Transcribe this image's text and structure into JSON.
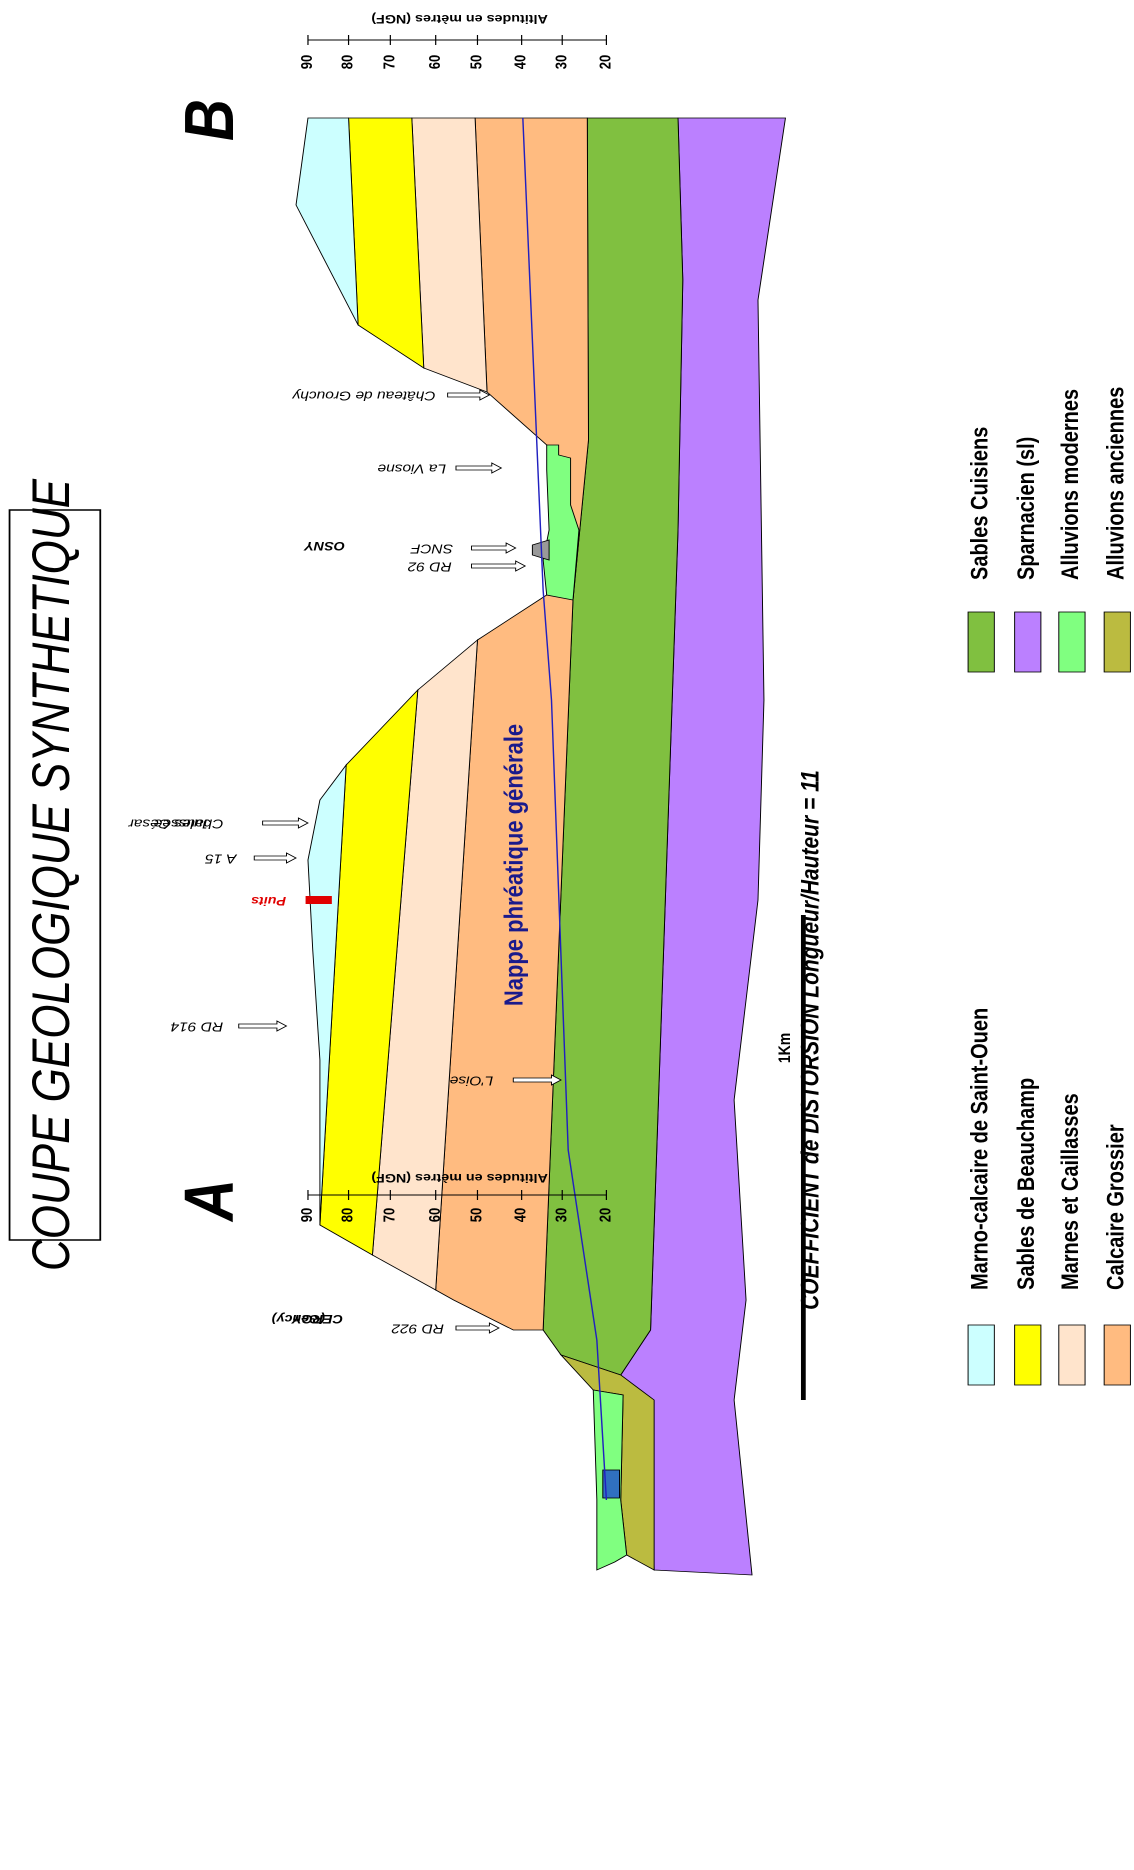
{
  "title": "COUPE GEOLOGIQUE SYNTHETIQUE",
  "section_ends": {
    "start": "A",
    "end": "B"
  },
  "altitude_axis": {
    "title": "Altitudes en mètres (NGF)",
    "ticks": [
      "90",
      "80",
      "70",
      "60",
      "50",
      "40",
      "30",
      "20"
    ]
  },
  "places": [
    {
      "lines": [
        "L'Oise"
      ]
    },
    {
      "lines": [
        "RD 922"
      ]
    },
    {
      "lines": [
        "RD 914"
      ]
    },
    {
      "lines": [
        "A 15"
      ]
    },
    {
      "lines": [
        "Chaussée",
        "Jules César"
      ]
    },
    {
      "lines": [
        "RD 92"
      ]
    },
    {
      "lines": [
        "SNCF"
      ]
    },
    {
      "lines": [
        "La Viosne"
      ]
    },
    {
      "lines": [
        "Château de Grouchy"
      ]
    }
  ],
  "communes": [
    {
      "lines": [
        "CERGY",
        "(Gency)"
      ]
    },
    {
      "lines": [
        "OSNY"
      ]
    }
  ],
  "well": "Puits",
  "aquifer": "Nappe phréatique générale",
  "scale": "1Km",
  "distortion": "COEFFICIENT de DISTORSION Longueur/Hauteur = 11",
  "legend": [
    {
      "label": "Marno-calcaire de Saint-Ouen",
      "color": "#ccffff"
    },
    {
      "label": "Sables de Beauchamp",
      "color": "#ffff00"
    },
    {
      "label": "Marnes et Caillasses",
      "color": "#ffe4cc"
    },
    {
      "label": "Calcaire Grossier",
      "color": "#ffbb80"
    },
    {
      "label": "Sables Cuisiens",
      "color": "#80c040"
    },
    {
      "label": "Sparnacien (sl)",
      "color": "#bb80ff"
    },
    {
      "label": "Alluvions modernes",
      "color": "#80ff80"
    },
    {
      "label": "Alluvions anciennes",
      "color": "#bbbb40"
    }
  ]
}
